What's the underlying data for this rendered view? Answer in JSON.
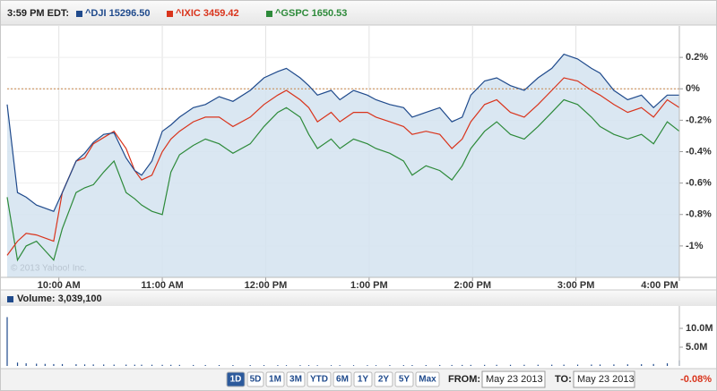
{
  "header": {
    "time": "3:59 PM EDT:"
  },
  "watermark": "© 2013 Yahoo! Inc.",
  "chart_data": [
    {
      "type": "line",
      "x": [
        570,
        576,
        581,
        587,
        592,
        597,
        602,
        610,
        615,
        620,
        626,
        632,
        639,
        644,
        648,
        654,
        660,
        665,
        670,
        678,
        685,
        693,
        701,
        711,
        719,
        727,
        732,
        740,
        745,
        750,
        758,
        763,
        771,
        779,
        784,
        792,
        800,
        805,
        813,
        821,
        828,
        834,
        839,
        847,
        854,
        862,
        870,
        878,
        886,
        893,
        901,
        909,
        914,
        922,
        930,
        938,
        945,
        953,
        960
      ],
      "series": [
        {
          "name": "^DJI 15296.50",
          "color": "#1f4a8c",
          "fill": "#d3e3f0",
          "values": [
            -0.1,
            -0.66,
            -0.69,
            -0.74,
            -0.76,
            -0.78,
            -0.66,
            -0.46,
            -0.41,
            -0.34,
            -0.29,
            -0.28,
            -0.44,
            -0.52,
            -0.55,
            -0.46,
            -0.27,
            -0.23,
            -0.18,
            -0.12,
            -0.1,
            -0.05,
            -0.08,
            -0.01,
            0.07,
            0.11,
            0.13,
            0.07,
            0.02,
            -0.04,
            -0.01,
            -0.07,
            -0.01,
            -0.04,
            -0.07,
            -0.1,
            -0.12,
            -0.18,
            -0.15,
            -0.12,
            -0.21,
            -0.18,
            -0.04,
            0.05,
            0.07,
            0.02,
            -0.01,
            0.07,
            0.13,
            0.22,
            0.19,
            0.13,
            0.1,
            -0.01,
            -0.07,
            -0.04,
            -0.12,
            -0.04,
            -0.04
          ]
        },
        {
          "name": "^IXIC 3459.42",
          "color": "#d9341c",
          "values": [
            -1.06,
            -0.97,
            -0.92,
            -0.93,
            -0.95,
            -0.97,
            -0.66,
            -0.46,
            -0.44,
            -0.35,
            -0.31,
            -0.27,
            -0.38,
            -0.52,
            -0.58,
            -0.55,
            -0.4,
            -0.32,
            -0.27,
            -0.21,
            -0.18,
            -0.18,
            -0.24,
            -0.18,
            -0.1,
            -0.04,
            -0.01,
            -0.07,
            -0.12,
            -0.21,
            -0.15,
            -0.21,
            -0.15,
            -0.15,
            -0.18,
            -0.21,
            -0.24,
            -0.29,
            -0.27,
            -0.29,
            -0.38,
            -0.32,
            -0.21,
            -0.1,
            -0.07,
            -0.15,
            -0.18,
            -0.1,
            -0.01,
            0.07,
            0.05,
            -0.01,
            -0.04,
            -0.1,
            -0.15,
            -0.12,
            -0.18,
            -0.07,
            -0.12
          ]
        },
        {
          "name": "^GSPC 1650.53",
          "color": "#2d8a3a",
          "values": [
            -0.69,
            -1.09,
            -1.0,
            -0.97,
            -1.03,
            -1.09,
            -0.89,
            -0.66,
            -0.63,
            -0.61,
            -0.53,
            -0.46,
            -0.66,
            -0.7,
            -0.74,
            -0.78,
            -0.8,
            -0.53,
            -0.42,
            -0.36,
            -0.32,
            -0.35,
            -0.41,
            -0.35,
            -0.24,
            -0.15,
            -0.12,
            -0.18,
            -0.29,
            -0.38,
            -0.32,
            -0.38,
            -0.32,
            -0.35,
            -0.38,
            -0.41,
            -0.46,
            -0.55,
            -0.49,
            -0.52,
            -0.58,
            -0.49,
            -0.38,
            -0.27,
            -0.21,
            -0.29,
            -0.32,
            -0.24,
            -0.15,
            -0.07,
            -0.1,
            -0.18,
            -0.24,
            -0.29,
            -0.32,
            -0.29,
            -0.35,
            -0.21,
            -0.27
          ]
        }
      ],
      "xlim": [
        570,
        960
      ],
      "xticks": [
        {
          "value": 600,
          "label": "10:00 AM"
        },
        {
          "value": 660,
          "label": "11:00 AM"
        },
        {
          "value": 720,
          "label": "12:00 PM"
        },
        {
          "value": 780,
          "label": "1:00 PM"
        },
        {
          "value": 840,
          "label": "2:00 PM"
        },
        {
          "value": 900,
          "label": "3:00 PM"
        },
        {
          "value": 960,
          "label": "4:00 PM"
        }
      ],
      "ylim": [
        -1.2,
        0.4
      ],
      "yticks": [
        {
          "value": 0.2,
          "label": "0.2%"
        },
        {
          "value": 0,
          "label": "0%"
        },
        {
          "value": -0.2,
          "label": "-0.2%"
        },
        {
          "value": -0.4,
          "label": "-0.4%"
        },
        {
          "value": -0.6,
          "label": "-0.6%"
        },
        {
          "value": -0.8,
          "label": "-0.8%"
        },
        {
          "value": -1,
          "label": "-1%"
        }
      ],
      "baseline": 0,
      "baseline_color": "#c8864a",
      "grid": true
    },
    {
      "type": "bar",
      "title": "Volume: 3,039,100",
      "color": "#1f4a8c",
      "x": [
        570,
        576,
        581,
        587,
        592,
        597,
        602,
        610,
        615,
        620,
        626,
        632,
        639,
        644,
        648,
        654,
        660,
        665,
        670,
        678,
        685,
        693,
        701,
        711,
        719,
        727,
        732,
        740,
        745,
        750,
        758,
        763,
        771,
        779,
        784,
        792,
        800,
        805,
        813,
        821,
        828,
        834,
        839,
        847,
        854,
        862,
        870,
        878,
        886,
        893,
        901,
        909,
        914,
        922,
        930,
        938,
        945,
        953,
        960
      ],
      "values": [
        13000000,
        900000,
        700000,
        600000,
        550000,
        500000,
        500000,
        450000,
        400000,
        400000,
        380000,
        350000,
        350000,
        330000,
        330000,
        320000,
        300000,
        300000,
        280000,
        260000,
        250000,
        240000,
        230000,
        220000,
        220000,
        210000,
        200000,
        200000,
        200000,
        190000,
        190000,
        190000,
        190000,
        200000,
        200000,
        210000,
        220000,
        230000,
        240000,
        250000,
        260000,
        270000,
        280000,
        290000,
        300000,
        300000,
        310000,
        320000,
        330000,
        340000,
        350000,
        370000,
        380000,
        400000,
        430000,
        460000,
        520000,
        700000,
        1500000
      ],
      "xlim": [
        570,
        960
      ],
      "ylim": [
        0,
        15000000
      ],
      "yticks": [
        {
          "value": 10000000,
          "label": "10.0M"
        },
        {
          "value": 5000000,
          "label": "5.0M"
        }
      ]
    }
  ],
  "controls": {
    "ranges": [
      "1D",
      "5D",
      "1M",
      "3M",
      "YTD",
      "6M",
      "1Y",
      "2Y",
      "5Y",
      "Max"
    ],
    "selected_range": 0,
    "from_label": "FROM:",
    "from_date": "May 23 2013",
    "to_label": "TO:",
    "to_date": "May 23 2013",
    "change": "-0.08%",
    "change_color": "#d9341c"
  }
}
